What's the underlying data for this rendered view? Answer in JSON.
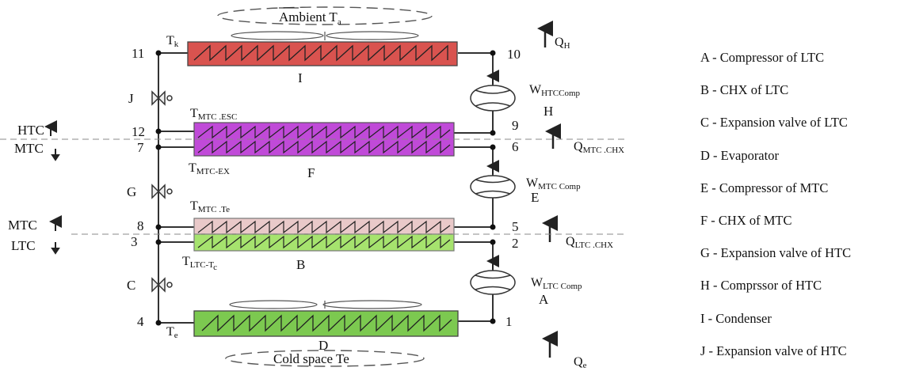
{
  "labels": {
    "ambient": "Ambient T",
    "ambient_sub": "a",
    "cold_space": "Cold space Te",
    "condenser_letter": "I",
    "chx_mtc_letter": "F",
    "chx_ltc_letter": "B",
    "evaporator_letter": "D",
    "comp_htc_letter": "H",
    "comp_mtc_letter": "E",
    "comp_ltc_letter": "A",
    "valve_j_letter": "J",
    "valve_g_letter": "G",
    "valve_c_letter": "C",
    "t_k": "T",
    "t_k_sub": "k",
    "t_mtc_esc": "T",
    "t_mtc_esc_sub": "MTC .ESC",
    "t_mtc_ex": "T",
    "t_mtc_ex_sub": "MTC-EX",
    "t_mtc_te": "T",
    "t_mtc_te_sub": "MTC .Te",
    "t_ltc_tc": "T",
    "t_ltc_tc_sub": "LTC-T",
    "t_ltc_tc_sub2": "c",
    "t_e": "T",
    "t_e_sub": "e",
    "q_h": "Q",
    "q_h_sub": "H",
    "q_mtc": "Q",
    "q_mtc_sub": "MTC .CHX",
    "q_ltc": "Q",
    "q_ltc_sub": "LTC .CHX",
    "q_e": "Q",
    "q_e_sub": "e",
    "w_htc": "W",
    "w_htc_sub": "HTCComp",
    "w_mtc": "W",
    "w_mtc_sub": "MTC Comp",
    "w_ltc": "W",
    "w_ltc_sub": "LTC Comp",
    "htc_tag": "HTC",
    "mtc_tag_upper": "MTC",
    "mtc_tag_lower": "MTC",
    "ltc_tag": "LTC"
  },
  "points": {
    "p1": "1",
    "p2": "2",
    "p3": "3",
    "p4": "4",
    "p5": "5",
    "p6": "6",
    "p7": "7",
    "p8": "8",
    "p9": "9",
    "p10": "10",
    "p11": "11",
    "p12": "12"
  },
  "legend": [
    "A - Compressor of LTC",
    "B - CHX of LTC",
    "C - Expansion valve of LTC",
    "D - Evaporator",
    "E - Compressor of MTC",
    "F - CHX of MTC",
    "G - Expansion valve of HTC",
    "H - Comprssor of HTC",
    "I - Condenser",
    "J - Expansion valve of HTC"
  ],
  "colors": {
    "condenser": "#d9534f",
    "chx_mtc": "#c04ad8",
    "chx_ltc_upper": "#e9c9c9",
    "chx_ltc_lower": "#a6e36e",
    "evaporator": "#7cc950",
    "line": "#333333"
  }
}
